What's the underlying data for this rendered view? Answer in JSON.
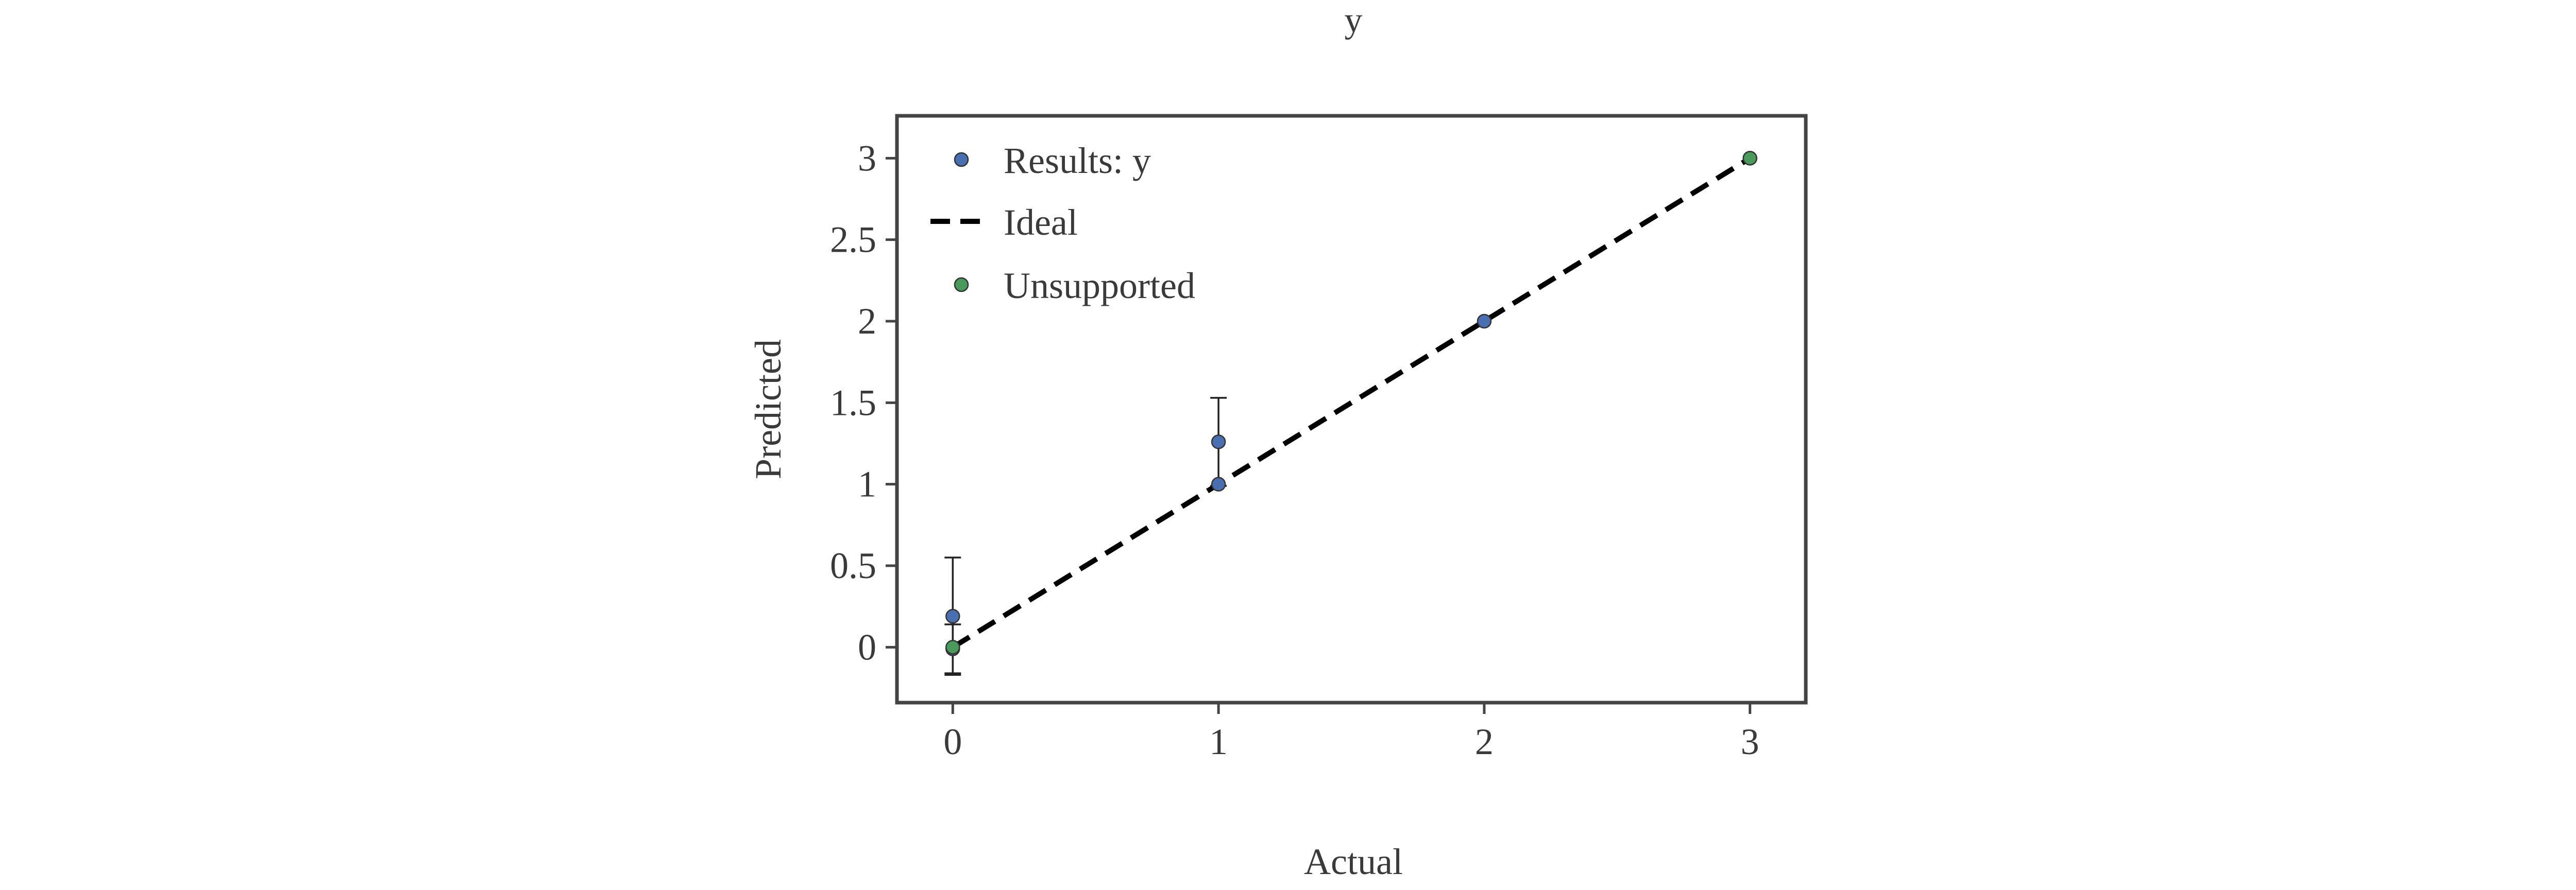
{
  "chart_data": {
    "type": "scatter",
    "title": "y",
    "xlabel": "Actual",
    "ylabel": "Predicted",
    "xlim": [
      -0.21,
      3.21
    ],
    "ylim": [
      -0.34,
      3.26
    ],
    "xticks": [
      0,
      1,
      2,
      3
    ],
    "xtick_labels": [
      "0",
      "1",
      "2",
      "3"
    ],
    "yticks": [
      0,
      0.5,
      1,
      1.5,
      2,
      2.5,
      3
    ],
    "ytick_labels": [
      "0",
      "0.5",
      "1",
      "1.5",
      "2",
      "2.5",
      "3"
    ],
    "grid": false,
    "legend_position": "top-left",
    "series": [
      {
        "name": "Results: y",
        "kind": "scatter-errorbar",
        "color": "#4a6fb0",
        "points": [
          {
            "x": 0,
            "y": 0.19,
            "yerr": 0.36
          },
          {
            "x": 0,
            "y": -0.01,
            "yerr": 0.15
          },
          {
            "x": 1,
            "y": 1.26,
            "yerr": 0.27
          },
          {
            "x": 1,
            "y": 1.0,
            "yerr": 0.0
          },
          {
            "x": 2,
            "y": 2.0,
            "yerr": 0.0
          },
          {
            "x": 3,
            "y": 3.0,
            "yerr": 0.0
          }
        ]
      },
      {
        "name": "Ideal",
        "kind": "line-dashed",
        "color": "#000000",
        "points": [
          {
            "x": 0,
            "y": 0
          },
          {
            "x": 3,
            "y": 3
          }
        ]
      },
      {
        "name": "Unsupported",
        "kind": "scatter",
        "color": "#4a9a5c",
        "points": [
          {
            "x": 0,
            "y": 0
          },
          {
            "x": 3,
            "y": 3
          }
        ]
      }
    ]
  }
}
